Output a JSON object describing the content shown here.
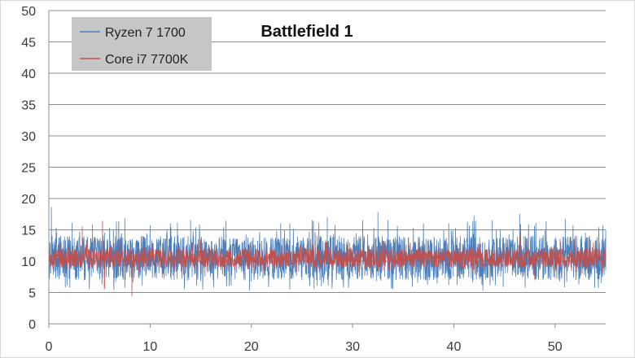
{
  "chart_data": {
    "type": "line",
    "title": "Battlefield 1",
    "xlabel": "",
    "ylabel": "",
    "xlim": [
      0,
      55
    ],
    "ylim": [
      0,
      50
    ],
    "x_ticks": [
      0,
      10,
      20,
      30,
      40,
      50
    ],
    "y_ticks": [
      0,
      5,
      10,
      15,
      20,
      25,
      30,
      35,
      40,
      45,
      50
    ],
    "grid": "horizontal",
    "legend_position": "top-left",
    "series": [
      {
        "name": "Ryzen 7 1700",
        "color": "#4a7ebb",
        "points": [
          [
            0,
            10.5
          ],
          [
            0.25,
            18.6
          ],
          [
            1,
            8.2
          ],
          [
            2.3,
            16.1
          ],
          [
            3.5,
            7.0
          ],
          [
            4.3,
            15.8
          ],
          [
            6.0,
            15.3
          ],
          [
            7.5,
            16.8
          ],
          [
            8.0,
            7.5
          ],
          [
            10.0,
            8.5
          ],
          [
            12.0,
            16.0
          ],
          [
            14.0,
            16.5
          ],
          [
            17.5,
            16.4
          ],
          [
            20.0,
            6.8
          ],
          [
            22.5,
            14.8
          ],
          [
            23.8,
            16.0
          ],
          [
            25.0,
            7.0
          ],
          [
            26.0,
            16.5
          ],
          [
            27.5,
            17.0
          ],
          [
            29.0,
            7.0
          ],
          [
            31.0,
            16.5
          ],
          [
            32.5,
            17.8
          ],
          [
            33.5,
            16.5
          ],
          [
            36.0,
            15.3
          ],
          [
            37.5,
            7.5
          ],
          [
            39.5,
            16.0
          ],
          [
            41.0,
            8.0
          ],
          [
            42.0,
            17.2
          ],
          [
            43.8,
            16.5
          ],
          [
            46.5,
            17.5
          ],
          [
            49.0,
            15.0
          ],
          [
            51.0,
            16.7
          ],
          [
            53.0,
            14.5
          ],
          [
            55.0,
            15.0
          ]
        ],
        "typical_range": [
          7,
          14
        ]
      },
      {
        "name": "Core i7 7700K",
        "color": "#c0504d",
        "points": [
          [
            0,
            10.0
          ],
          [
            1,
            11.5
          ],
          [
            3.3,
            15.5
          ],
          [
            5.3,
            16.4
          ],
          [
            5.5,
            5.6
          ],
          [
            7.5,
            5.8
          ],
          [
            8.2,
            4.5
          ],
          [
            8.5,
            11.0
          ],
          [
            15,
            13.5
          ],
          [
            23,
            12.5
          ],
          [
            26.5,
            14.0
          ],
          [
            33,
            13.0
          ],
          [
            40,
            12.5
          ],
          [
            46.5,
            14.0
          ],
          [
            48,
            7.0
          ],
          [
            50.5,
            13.5
          ],
          [
            52,
            14.0
          ],
          [
            55,
            11.0
          ]
        ],
        "typical_range": [
          9,
          12
        ]
      }
    ]
  }
}
